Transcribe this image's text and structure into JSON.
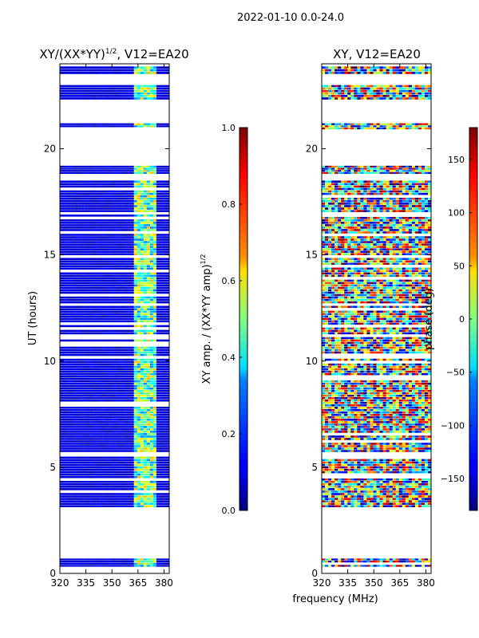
{
  "figure": {
    "suptitle": "2022-01-10 0.0-24.0",
    "shared_xlabel": "frequency (MHz)"
  },
  "chart_data": [
    {
      "type": "heatmap",
      "title": "XY/(XX*YY)",
      "title_sup": "1/2",
      "title_tail": ", V12=EA20",
      "ylabel": "UT (hours)",
      "x_range": [
        320,
        383
      ],
      "y_range": [
        0,
        24
      ],
      "xticks": [
        "320",
        "335",
        "350",
        "365",
        "380"
      ],
      "xtick_values": [
        320,
        335,
        350,
        365,
        380
      ],
      "yticks": [
        "0",
        "5",
        "10",
        "15",
        "20"
      ],
      "ytick_values": [
        0,
        5,
        10,
        15,
        20
      ],
      "colorbar": {
        "label": "XY amp. / (XX*YY amp)",
        "label_sup": "1/2",
        "range": [
          0.0,
          1.0
        ],
        "ticks": [
          "0.0",
          "0.2",
          "0.4",
          "0.6",
          "0.8",
          "1.0"
        ],
        "tick_values": [
          0.0,
          0.2,
          0.4,
          0.6,
          0.8,
          1.0
        ],
        "colormap": "jet"
      },
      "data_blocks_hours": [
        [
          0.3,
          0.7
        ],
        [
          3.1,
          5.5
        ],
        [
          5.7,
          12.6
        ],
        [
          12.7,
          16.9
        ],
        [
          17.0,
          18.5
        ],
        [
          18.8,
          19.2
        ],
        [
          20.8,
          21.2
        ],
        [
          22.3,
          23.0
        ],
        [
          23.5,
          24.0
        ]
      ]
    },
    {
      "type": "heatmap",
      "title": "XY, V12=EA20",
      "x_range": [
        320,
        383
      ],
      "y_range": [
        0,
        24
      ],
      "xticks": [
        "320",
        "335",
        "350",
        "365",
        "380"
      ],
      "xtick_values": [
        320,
        335,
        350,
        365,
        380
      ],
      "yticks": [
        "0",
        "5",
        "10",
        "15",
        "20"
      ],
      "ytick_values": [
        0,
        5,
        10,
        15,
        20
      ],
      "colorbar": {
        "label": "phase (deg)",
        "range": [
          -180,
          180
        ],
        "ticks": [
          "−150",
          "−100",
          "−50",
          "0",
          "50",
          "100",
          "150"
        ],
        "tick_values": [
          -150,
          -100,
          -50,
          0,
          50,
          100,
          150
        ],
        "colormap": "jet"
      },
      "data_blocks_hours": [
        [
          0.3,
          0.7
        ],
        [
          3.1,
          5.5
        ],
        [
          5.7,
          12.6
        ],
        [
          12.7,
          16.9
        ],
        [
          17.0,
          18.5
        ],
        [
          18.8,
          19.2
        ],
        [
          20.8,
          21.2
        ],
        [
          22.3,
          23.0
        ],
        [
          23.5,
          24.0
        ]
      ]
    }
  ]
}
